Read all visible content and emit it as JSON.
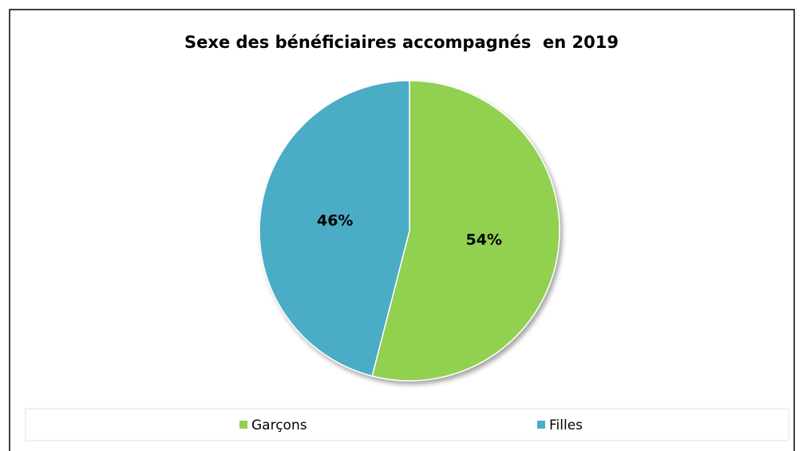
{
  "chart_data": {
    "type": "pie",
    "title": "Sexe des bénéficiaires accompagnés  en 2019",
    "categories": [
      "Garçons",
      "Filles"
    ],
    "values": [
      54,
      46
    ],
    "value_labels": [
      "54%",
      "46%"
    ],
    "colors": [
      "#92d050",
      "#4bacc6"
    ],
    "legend": "bottom"
  }
}
